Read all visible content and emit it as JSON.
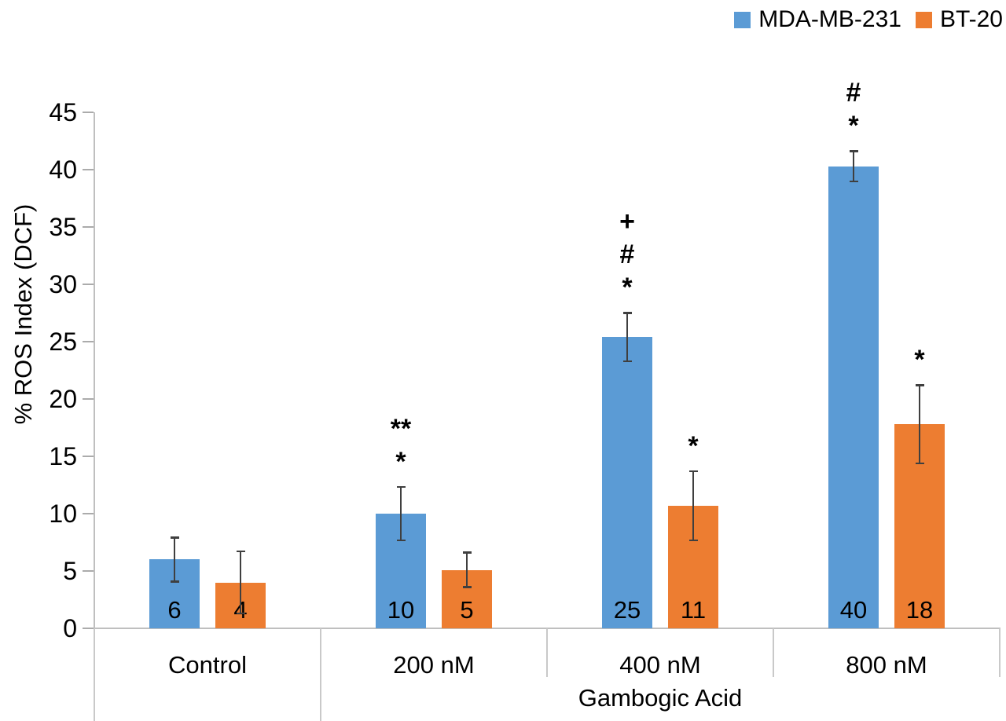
{
  "chart_data": {
    "type": "bar",
    "categories": [
      "Control",
      "200 nM",
      "400 nM",
      "800 nM"
    ],
    "group_label": "Gambogic Acid",
    "ylabel": "% ROS Index (DCF)",
    "ylim": [
      0,
      45
    ],
    "yticks": [
      0,
      5,
      10,
      15,
      20,
      25,
      30,
      35,
      40,
      45
    ],
    "grid": false,
    "legend_position": "top-right",
    "axis_color": "#bfbfbf",
    "error_bar_color": "#3f3f3f",
    "series": [
      {
        "name": "MDA-MB-231",
        "color": "#5B9BD5",
        "values": [
          6.0,
          10.0,
          25.4,
          40.3
        ],
        "errors": [
          2.0,
          2.4,
          2.2,
          1.4
        ],
        "data_labels": [
          "6",
          "10",
          "25",
          "40"
        ],
        "annotations": [
          [],
          [
            "**",
            "*"
          ],
          [
            "+",
            "#",
            "*"
          ],
          [
            "#",
            "*"
          ]
        ]
      },
      {
        "name": "BT-20",
        "color": "#ED7D31",
        "values": [
          4.0,
          5.1,
          10.7,
          17.8
        ],
        "errors": [
          2.8,
          1.6,
          3.1,
          3.5
        ],
        "data_labels": [
          "4",
          "5",
          "11",
          "18"
        ],
        "annotations": [
          [],
          [],
          [
            "*"
          ],
          [
            "*"
          ]
        ]
      }
    ]
  }
}
